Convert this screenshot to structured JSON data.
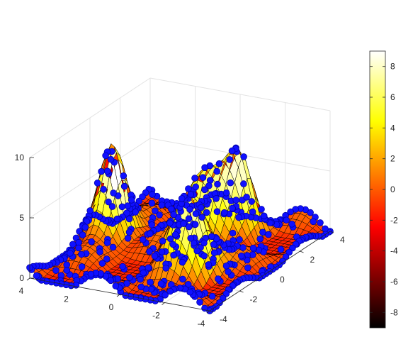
{
  "chart_data": {
    "type": "surface",
    "title": "",
    "xlabel": "",
    "ylabel": "",
    "zlabel": "",
    "xlim": [
      -4,
      4
    ],
    "ylim": [
      -4,
      4
    ],
    "zlim": [
      0,
      10
    ],
    "grid": true,
    "x_ticks": [
      "-4",
      "-2",
      "0",
      "2",
      "4"
    ],
    "y_ticks": [
      "-4",
      "-2",
      "0",
      "2",
      "4"
    ],
    "z_ticks": [
      "0",
      "5",
      "10"
    ],
    "colormap": "hot",
    "colorbar": {
      "placement": "right",
      "range": [
        -9,
        9
      ],
      "ticks": [
        "8",
        "6",
        "4",
        "2",
        "0",
        "-2",
        "-4",
        "-6",
        "-8"
      ],
      "tick_values": [
        8,
        6,
        4,
        2,
        0,
        -2,
        -4,
        -6,
        -8
      ]
    },
    "surface": {
      "description_peaks": [
        {
          "x": 3.0,
          "y": 0.0,
          "z": 9.0
        },
        {
          "x": 0.0,
          "y": 1.5,
          "z": 5.5
        },
        {
          "x": -1.0,
          "y": 2.5,
          "z": 5.0
        },
        {
          "x": -1.5,
          "y": -1.5,
          "z": 6.0
        }
      ],
      "edge_color": "#000000"
    },
    "markers": {
      "color": "#1010ff",
      "edge_color": "#0000aa",
      "shape": "circle"
    }
  }
}
